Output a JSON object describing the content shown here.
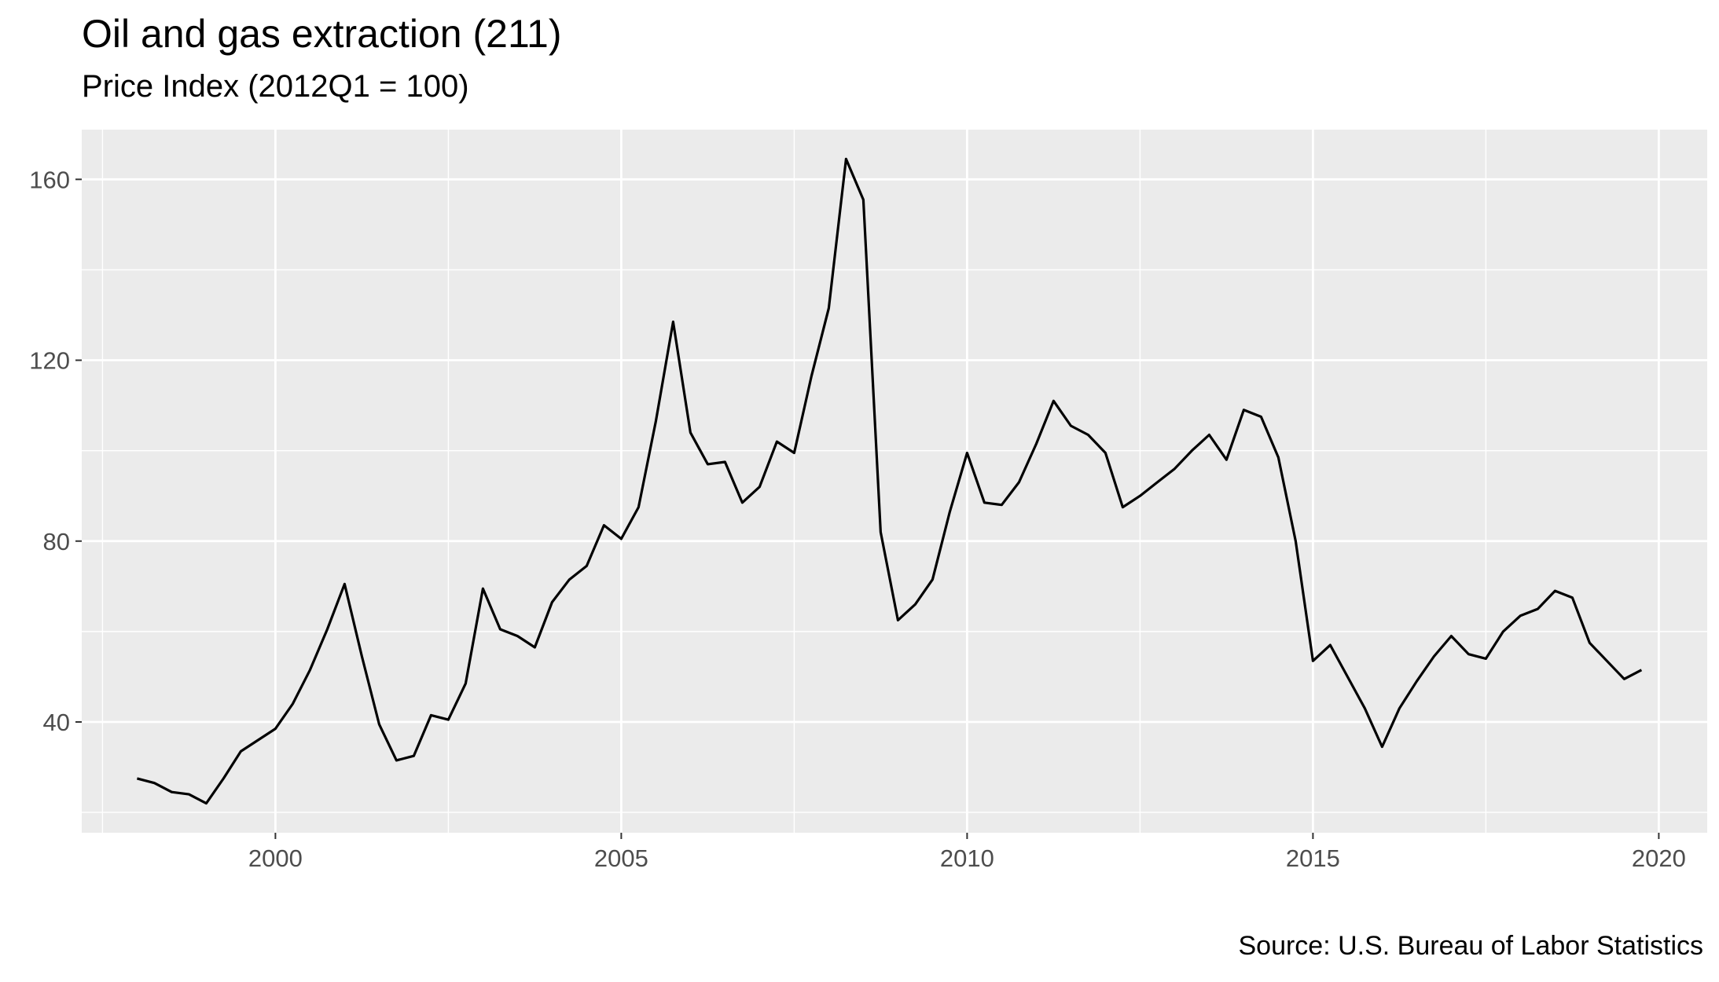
{
  "chart_data": {
    "type": "line",
    "title": "Oil and gas extraction (211)",
    "subtitle": "Price Index (2012Q1 = 100)",
    "caption": "Source: U.S. Bureau of Labor Statistics",
    "xlabel": "",
    "ylabel": "",
    "xlim": [
      1997.2,
      2020.7
    ],
    "ylim": [
      15.5,
      171
    ],
    "x_ticks": [
      2000,
      2005,
      2010,
      2015,
      2020
    ],
    "y_ticks": [
      40,
      80,
      120,
      160
    ],
    "grid": true,
    "line_color": "#000000",
    "panel_background": "#ebebeb",
    "series": [
      {
        "x": [
          1998.0,
          1998.25,
          1998.5,
          1998.75,
          1999.0,
          1999.25,
          1999.5,
          1999.75,
          2000.0,
          2000.25,
          2000.5,
          2000.75,
          2001.0,
          2001.25,
          2001.5,
          2001.75,
          2002.0,
          2002.25,
          2002.5,
          2002.75,
          2003.0,
          2003.25,
          2003.5,
          2003.75,
          2004.0,
          2004.25,
          2004.5,
          2004.75,
          2005.0,
          2005.25,
          2005.5,
          2005.75,
          2006.0,
          2006.25,
          2006.5,
          2006.75,
          2007.0,
          2007.25,
          2007.5,
          2007.75,
          2008.0,
          2008.25,
          2008.5,
          2008.75,
          2009.0,
          2009.25,
          2009.5,
          2009.75,
          2010.0,
          2010.25,
          2010.5,
          2010.75,
          2011.0,
          2011.25,
          2011.5,
          2011.75,
          2012.0,
          2012.25,
          2012.5,
          2012.75,
          2013.0,
          2013.25,
          2013.5,
          2013.75,
          2014.0,
          2014.25,
          2014.5,
          2014.75,
          2015.0,
          2015.25,
          2015.5,
          2015.75,
          2016.0,
          2016.25,
          2016.5,
          2016.75,
          2017.0,
          2017.25,
          2017.5,
          2017.75,
          2018.0,
          2018.25,
          2018.5,
          2018.75,
          2019.0,
          2019.25,
          2019.5,
          2019.75
        ],
        "values": [
          27.5,
          26.5,
          24.5,
          24.0,
          22.0,
          27.5,
          33.5,
          36.0,
          38.5,
          44.0,
          51.5,
          60.5,
          70.5,
          54.5,
          39.5,
          31.5,
          32.5,
          41.5,
          40.5,
          48.5,
          69.5,
          60.5,
          59.0,
          56.5,
          66.5,
          71.5,
          74.5,
          83.5,
          80.5,
          87.5,
          106.5,
          128.5,
          104.0,
          97.0,
          97.5,
          88.5,
          92.0,
          102.0,
          99.5,
          116.5,
          131.5,
          164.5,
          155.5,
          82.0,
          62.5,
          66.0,
          71.5,
          86.5,
          99.5,
          88.5,
          88.0,
          93.0,
          101.5,
          111.0,
          105.5,
          103.5,
          99.5,
          87.5,
          90.0,
          93.0,
          96.0,
          100.0,
          103.5,
          98.0,
          109.0,
          107.5,
          98.5,
          80.0,
          53.5,
          57.0,
          50.0,
          43.0,
          34.5,
          43.0,
          49.0,
          54.5,
          59.0,
          55.0,
          54.0,
          60.0,
          63.5,
          65.0,
          69.0,
          67.5,
          57.5,
          53.5,
          49.5,
          51.5
        ]
      }
    ]
  }
}
